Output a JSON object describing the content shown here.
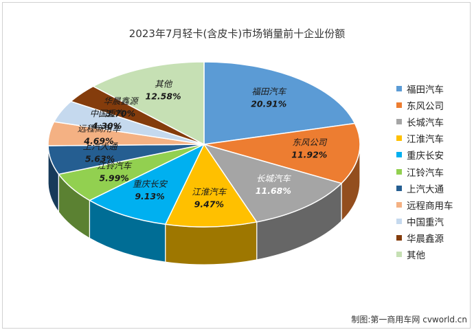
{
  "chart_data": {
    "type": "pie",
    "title": "2023年7月轻卡(含皮卡)市场销量前十企业份额",
    "unit": "%",
    "legend_position": "right",
    "slices": [
      {
        "name": "福田汽车",
        "value": 20.91,
        "label": "20.91%",
        "color": "#5b9bd5"
      },
      {
        "name": "东风公司",
        "value": 11.92,
        "label": "11.92%",
        "color": "#ed7d31"
      },
      {
        "name": "长城汽车",
        "value": 11.68,
        "label": "11.68%",
        "color": "#a5a5a5"
      },
      {
        "name": "江淮汽车",
        "value": 9.47,
        "label": "9.47%",
        "color": "#ffc000"
      },
      {
        "name": "重庆长安",
        "value": 9.13,
        "label": "9.13%",
        "color": "#00b0f0"
      },
      {
        "name": "江铃汽车",
        "value": 5.99,
        "label": "5.99%",
        "color": "#92d050"
      },
      {
        "name": "上汽大通",
        "value": 5.63,
        "label": "5.63%",
        "color": "#255e91"
      },
      {
        "name": "远程商用车",
        "value": 4.69,
        "label": "4.69%",
        "color": "#f4b183"
      },
      {
        "name": "中国重汽",
        "value": 4.3,
        "label": "4.30%",
        "color": "#c5d9ee"
      },
      {
        "name": "华晨鑫源",
        "value": 3.7,
        "label": "3.70%",
        "color": "#843c0c"
      },
      {
        "name": "其他",
        "value": 12.58,
        "label": "12.58%",
        "color": "#c6e0b4"
      }
    ]
  },
  "credit": "制图:第一商用车网 cvworld.cn"
}
